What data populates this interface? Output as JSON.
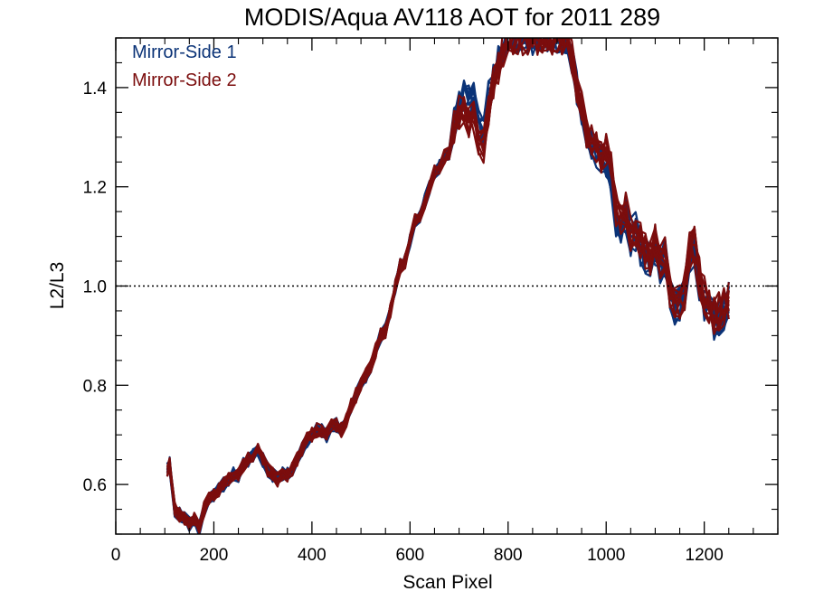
{
  "chart_data": {
    "type": "line",
    "title": "MODIS/Aqua AV118 AOT for 2011 289",
    "xlabel": "Scan Pixel",
    "ylabel": "L2/L3",
    "xlim": [
      0,
      1350
    ],
    "ylim": [
      0.5,
      1.5
    ],
    "xticks": [
      0,
      200,
      400,
      600,
      800,
      1000,
      1200
    ],
    "yticks": [
      0.6,
      0.8,
      1.0,
      1.2,
      1.4
    ],
    "xtick_labels": [
      "0",
      "200",
      "400",
      "600",
      "800",
      "1000",
      "1200"
    ],
    "ytick_labels": [
      "0.6",
      "0.8",
      "1.0",
      "1.2",
      "1.4"
    ],
    "reference_line": {
      "y": 1.0,
      "style": "dotted",
      "color": "#000000"
    },
    "grid": false,
    "legend": {
      "placement": "top-left"
    },
    "series": [
      {
        "name": "Mirror-Side 1",
        "color": "#0b3377",
        "line_count": 10,
        "x": [
          105,
          110,
          120,
          130,
          140,
          150,
          160,
          170,
          180,
          190,
          200,
          210,
          220,
          230,
          240,
          250,
          260,
          270,
          280,
          290,
          300,
          310,
          320,
          330,
          340,
          350,
          360,
          370,
          380,
          390,
          400,
          410,
          420,
          430,
          440,
          450,
          460,
          470,
          480,
          490,
          500,
          510,
          520,
          530,
          540,
          550,
          560,
          570,
          580,
          590,
          600,
          610,
          620,
          630,
          640,
          650,
          660,
          670,
          680,
          690,
          700,
          710,
          720,
          730,
          740,
          750,
          760,
          770,
          780,
          790,
          800,
          810,
          820,
          830,
          840,
          850,
          860,
          870,
          880,
          890,
          900,
          910,
          920,
          930,
          940,
          950,
          960,
          970,
          980,
          990,
          1000,
          1010,
          1020,
          1030,
          1040,
          1050,
          1060,
          1070,
          1080,
          1090,
          1100,
          1110,
          1120,
          1130,
          1140,
          1150,
          1160,
          1170,
          1180,
          1190,
          1200,
          1210,
          1220,
          1230,
          1240,
          1250
        ],
        "y": [
          0.63,
          0.64,
          0.55,
          0.54,
          0.53,
          0.52,
          0.53,
          0.51,
          0.55,
          0.57,
          0.58,
          0.59,
          0.6,
          0.61,
          0.62,
          0.62,
          0.64,
          0.65,
          0.66,
          0.67,
          0.65,
          0.63,
          0.62,
          0.61,
          0.62,
          0.62,
          0.63,
          0.65,
          0.67,
          0.69,
          0.7,
          0.71,
          0.71,
          0.7,
          0.72,
          0.72,
          0.71,
          0.73,
          0.76,
          0.78,
          0.8,
          0.82,
          0.84,
          0.87,
          0.9,
          0.91,
          0.95,
          1.0,
          1.04,
          1.05,
          1.09,
          1.13,
          1.14,
          1.17,
          1.2,
          1.23,
          1.24,
          1.26,
          1.27,
          1.33,
          1.36,
          1.38,
          1.37,
          1.38,
          1.34,
          1.31,
          1.38,
          1.42,
          1.45,
          1.47,
          1.5,
          1.5,
          1.5,
          1.5,
          1.5,
          1.5,
          1.5,
          1.5,
          1.5,
          1.5,
          1.5,
          1.5,
          1.5,
          1.46,
          1.4,
          1.36,
          1.31,
          1.29,
          1.27,
          1.25,
          1.26,
          1.22,
          1.14,
          1.12,
          1.14,
          1.1,
          1.11,
          1.08,
          1.06,
          1.05,
          1.08,
          1.04,
          1.06,
          0.98,
          0.96,
          0.97,
          0.99,
          1.06,
          1.07,
          1.01,
          0.97,
          0.95,
          0.93,
          0.94,
          0.95,
          0.98
        ]
      },
      {
        "name": "Mirror-Side 2",
        "color": "#7b0d0d",
        "line_count": 10,
        "x": [
          105,
          110,
          120,
          130,
          140,
          150,
          160,
          170,
          180,
          190,
          200,
          210,
          220,
          230,
          240,
          250,
          260,
          270,
          280,
          290,
          300,
          310,
          320,
          330,
          340,
          350,
          360,
          370,
          380,
          390,
          400,
          410,
          420,
          430,
          440,
          450,
          460,
          470,
          480,
          490,
          500,
          510,
          520,
          530,
          540,
          550,
          560,
          570,
          580,
          590,
          600,
          610,
          620,
          630,
          640,
          650,
          660,
          670,
          680,
          690,
          700,
          710,
          720,
          730,
          740,
          750,
          760,
          770,
          780,
          790,
          800,
          810,
          820,
          830,
          840,
          850,
          860,
          870,
          880,
          890,
          900,
          910,
          920,
          930,
          940,
          950,
          960,
          970,
          980,
          990,
          1000,
          1010,
          1020,
          1030,
          1040,
          1050,
          1060,
          1070,
          1080,
          1090,
          1100,
          1110,
          1120,
          1130,
          1140,
          1150,
          1160,
          1170,
          1180,
          1190,
          1200,
          1210,
          1220,
          1230,
          1240,
          1250
        ],
        "y": [
          0.63,
          0.64,
          0.55,
          0.54,
          0.53,
          0.52,
          0.53,
          0.51,
          0.55,
          0.57,
          0.58,
          0.59,
          0.6,
          0.61,
          0.62,
          0.62,
          0.64,
          0.65,
          0.66,
          0.67,
          0.65,
          0.63,
          0.62,
          0.61,
          0.62,
          0.62,
          0.63,
          0.65,
          0.67,
          0.69,
          0.7,
          0.71,
          0.71,
          0.7,
          0.72,
          0.72,
          0.71,
          0.73,
          0.76,
          0.78,
          0.8,
          0.82,
          0.84,
          0.87,
          0.9,
          0.91,
          0.95,
          1.0,
          1.04,
          1.05,
          1.09,
          1.13,
          1.14,
          1.17,
          1.2,
          1.23,
          1.24,
          1.26,
          1.27,
          1.32,
          1.35,
          1.36,
          1.33,
          1.34,
          1.3,
          1.28,
          1.35,
          1.41,
          1.44,
          1.47,
          1.5,
          1.5,
          1.5,
          1.5,
          1.5,
          1.5,
          1.5,
          1.5,
          1.5,
          1.5,
          1.5,
          1.5,
          1.5,
          1.46,
          1.4,
          1.36,
          1.31,
          1.29,
          1.28,
          1.26,
          1.27,
          1.24,
          1.16,
          1.14,
          1.15,
          1.11,
          1.12,
          1.09,
          1.07,
          1.06,
          1.09,
          1.05,
          1.07,
          0.99,
          0.96,
          0.97,
          0.99,
          1.07,
          1.08,
          1.02,
          0.98,
          0.96,
          0.94,
          0.95,
          0.96,
          0.97
        ]
      }
    ]
  }
}
